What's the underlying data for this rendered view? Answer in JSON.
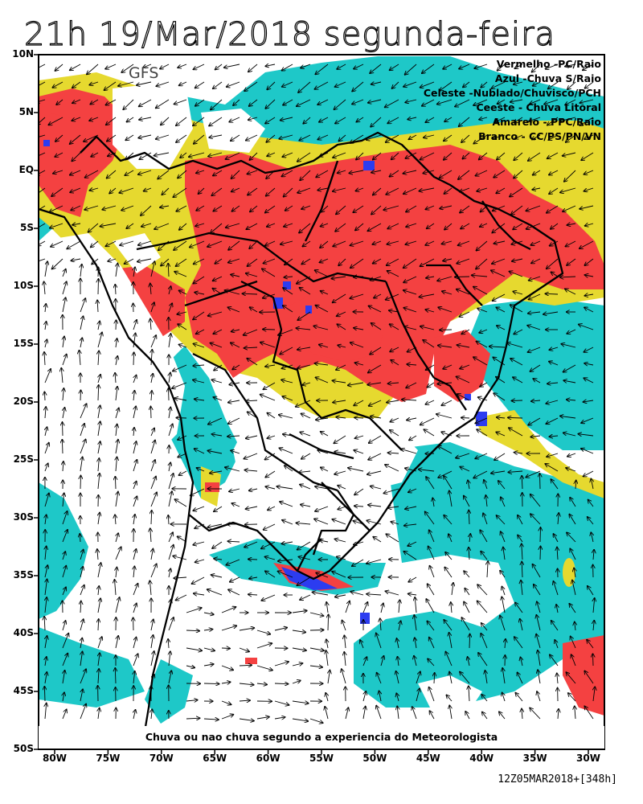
{
  "title": "21h 19/Mar/2018 segunda-feira",
  "model": "GFS",
  "legend": [
    "Vermelho  -PC/Raio",
    "Azul  -Chuva S/Raio",
    "Celeste  -Nublado/Chuvisco/PCH",
    "Ceeste  - Chuva Litoral",
    "Amarelo  -  PPC/Raio",
    "Branco  -  CC/PS/PN/VN"
  ],
  "footer": "Chuva ou nao chuva segundo a experiencia do Meteorologista",
  "run_label": "12Z05MAR2018+[348h]",
  "lat_labels": [
    "10N",
    "5N",
    "EQ",
    "5S",
    "10S",
    "15S",
    "20S",
    "25S",
    "30S",
    "35S",
    "40S",
    "45S",
    "50S"
  ],
  "lon_labels": [
    "80W",
    "75W",
    "70W",
    "65W",
    "60W",
    "55W",
    "50W",
    "45W",
    "40W",
    "35W",
    "30W"
  ],
  "colors": {
    "red": "#f44141",
    "yellow": "#e6d92f",
    "cyan": "#1ec8c8",
    "blue": "#2c3cf0",
    "white": "#ffffff",
    "land_outline": "#000000"
  }
}
